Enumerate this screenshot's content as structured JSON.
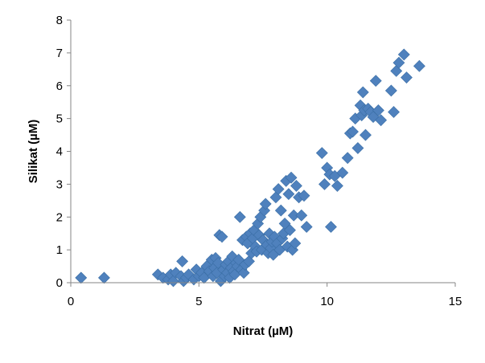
{
  "chart_data": {
    "type": "scatter",
    "title": "",
    "xlabel": "Nitrat (µM)",
    "ylabel": "Silikat (µM)",
    "xlim": [
      0,
      15
    ],
    "ylim": [
      0,
      8
    ],
    "x_ticks": [
      "0",
      "5",
      "10",
      "15"
    ],
    "y_ticks": [
      "0",
      "1",
      "2",
      "3",
      "4",
      "5",
      "6",
      "7",
      "8"
    ],
    "grid": false,
    "legend": "none",
    "marker": "diamond",
    "marker_color": "#4f81bd",
    "series": [
      {
        "points": [
          [
            0.4,
            0.15
          ],
          [
            1.3,
            0.15
          ],
          [
            3.4,
            0.25
          ],
          [
            3.6,
            0.15
          ],
          [
            3.8,
            0.1
          ],
          [
            3.9,
            0.25
          ],
          [
            4.0,
            0.05
          ],
          [
            4.1,
            0.3
          ],
          [
            4.3,
            0.2
          ],
          [
            4.35,
            0.65
          ],
          [
            4.4,
            0.05
          ],
          [
            4.5,
            0.15
          ],
          [
            4.6,
            0.25
          ],
          [
            4.8,
            0.1
          ],
          [
            4.9,
            0.4
          ],
          [
            5.0,
            0.2
          ],
          [
            5.1,
            0.3
          ],
          [
            5.2,
            0.15
          ],
          [
            5.3,
            0.5
          ],
          [
            5.4,
            0.35
          ],
          [
            5.5,
            0.7
          ],
          [
            5.55,
            0.2
          ],
          [
            5.6,
            0.45
          ],
          [
            5.65,
            0.75
          ],
          [
            5.7,
            0.3
          ],
          [
            5.75,
            0.6
          ],
          [
            5.8,
            1.45
          ],
          [
            5.85,
            0.05
          ],
          [
            5.9,
            1.4
          ],
          [
            5.95,
            0.4
          ],
          [
            6.0,
            0.2
          ],
          [
            6.05,
            0.55
          ],
          [
            6.1,
            0.3
          ],
          [
            6.15,
            0.65
          ],
          [
            6.2,
            0.15
          ],
          [
            6.25,
            0.45
          ],
          [
            6.3,
            0.8
          ],
          [
            6.35,
            0.35
          ],
          [
            6.4,
            0.25
          ],
          [
            6.45,
            0.6
          ],
          [
            6.5,
            0.5
          ],
          [
            6.55,
            0.7
          ],
          [
            6.6,
            2.0
          ],
          [
            6.65,
            0.4
          ],
          [
            6.7,
            1.3
          ],
          [
            6.75,
            0.3
          ],
          [
            6.8,
            0.55
          ],
          [
            6.85,
            1.4
          ],
          [
            6.9,
            1.2
          ],
          [
            6.95,
            0.65
          ],
          [
            7.0,
            1.5
          ],
          [
            7.05,
            0.9
          ],
          [
            7.1,
            1.35
          ],
          [
            7.15,
            1.6
          ],
          [
            7.2,
            1.1
          ],
          [
            7.25,
            0.95
          ],
          [
            7.3,
            1.8
          ],
          [
            7.35,
            1.45
          ],
          [
            7.4,
            2.0
          ],
          [
            7.45,
            1.0
          ],
          [
            7.5,
            1.3
          ],
          [
            7.55,
            2.2
          ],
          [
            7.6,
            2.4
          ],
          [
            7.65,
            1.15
          ],
          [
            7.7,
            0.9
          ],
          [
            7.75,
            1.5
          ],
          [
            7.8,
            1.05
          ],
          [
            7.85,
            1.25
          ],
          [
            7.9,
            0.85
          ],
          [
            7.95,
            1.4
          ],
          [
            8.0,
            2.6
          ],
          [
            8.05,
            1.2
          ],
          [
            8.1,
            2.85
          ],
          [
            8.15,
            1.0
          ],
          [
            8.2,
            2.2
          ],
          [
            8.25,
            1.35
          ],
          [
            8.3,
            1.5
          ],
          [
            8.35,
            1.8
          ],
          [
            8.4,
            3.1
          ],
          [
            8.45,
            1.1
          ],
          [
            8.5,
            2.7
          ],
          [
            8.55,
            1.6
          ],
          [
            8.6,
            3.2
          ],
          [
            8.65,
            1.0
          ],
          [
            8.7,
            2.05
          ],
          [
            8.75,
            1.2
          ],
          [
            8.8,
            2.95
          ],
          [
            8.9,
            2.6
          ],
          [
            9.0,
            2.05
          ],
          [
            9.1,
            2.65
          ],
          [
            9.2,
            1.7
          ],
          [
            9.8,
            3.95
          ],
          [
            9.9,
            3.0
          ],
          [
            10.0,
            3.5
          ],
          [
            10.1,
            3.3
          ],
          [
            10.15,
            1.7
          ],
          [
            10.3,
            3.25
          ],
          [
            10.4,
            2.95
          ],
          [
            10.6,
            3.35
          ],
          [
            10.8,
            3.8
          ],
          [
            10.9,
            4.55
          ],
          [
            11.0,
            4.6
          ],
          [
            11.1,
            5.0
          ],
          [
            11.2,
            4.1
          ],
          [
            11.3,
            5.4
          ],
          [
            11.35,
            5.1
          ],
          [
            11.4,
            5.8
          ],
          [
            11.45,
            5.25
          ],
          [
            11.5,
            4.5
          ],
          [
            11.6,
            5.3
          ],
          [
            11.7,
            5.2
          ],
          [
            11.8,
            5.05
          ],
          [
            11.9,
            6.15
          ],
          [
            12.0,
            5.25
          ],
          [
            12.1,
            4.95
          ],
          [
            12.5,
            5.85
          ],
          [
            12.6,
            5.2
          ],
          [
            12.7,
            6.45
          ],
          [
            12.8,
            6.7
          ],
          [
            13.0,
            6.95
          ],
          [
            13.1,
            6.25
          ],
          [
            13.6,
            6.6
          ]
        ]
      }
    ]
  }
}
